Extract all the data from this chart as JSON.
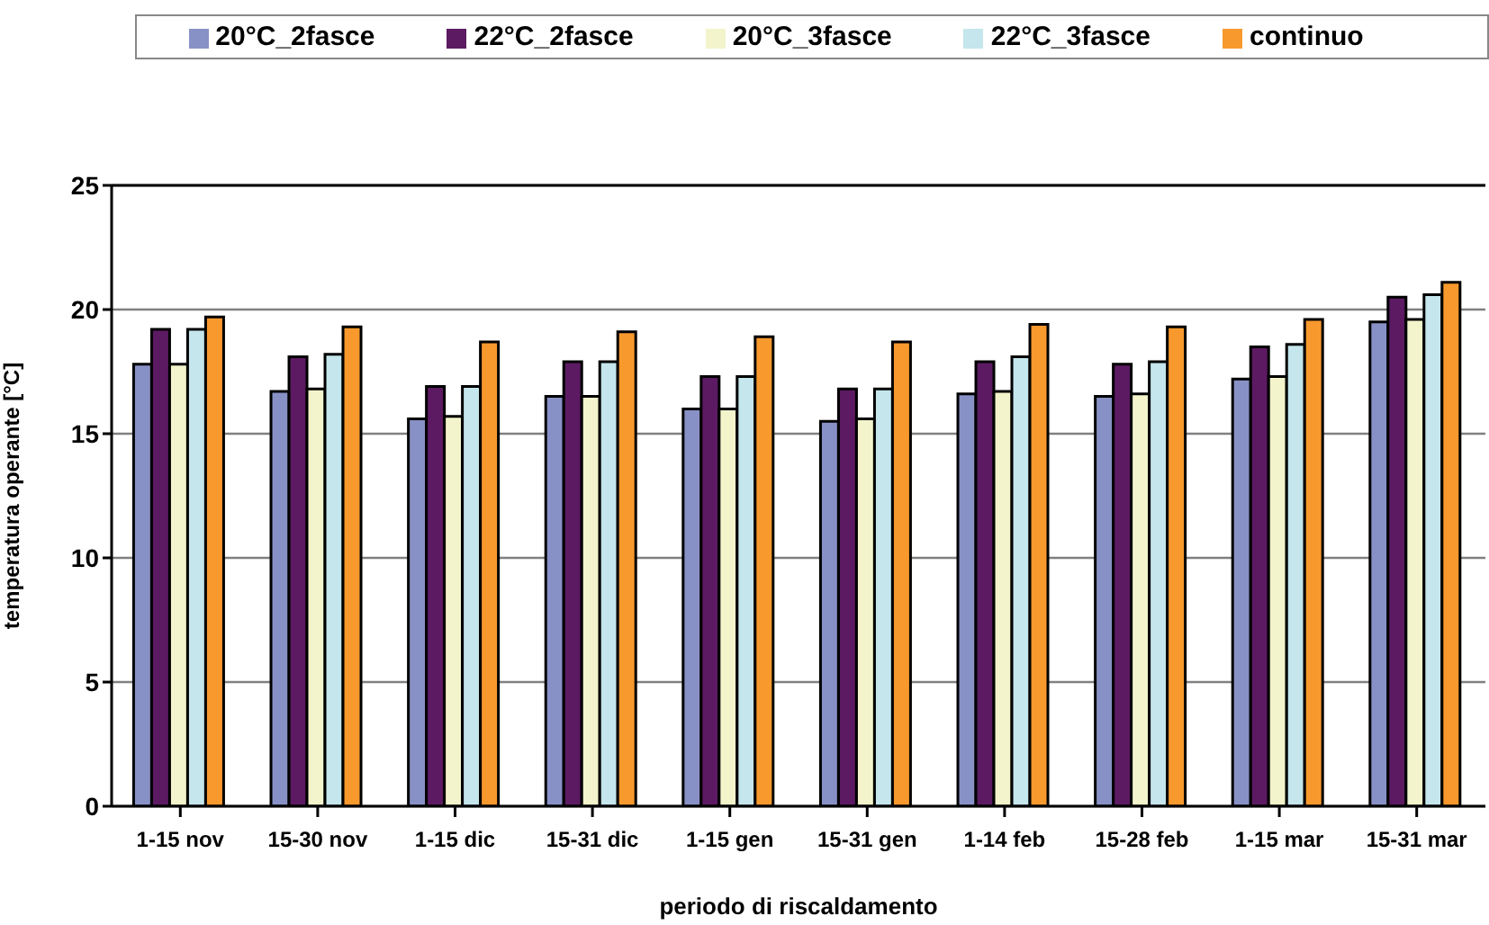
{
  "chart_data": {
    "type": "bar",
    "xlabel": "periodo di riscaldamento",
    "ylabel": "temperatura operante [°C]",
    "categories": [
      "1-15 nov",
      "15-30 nov",
      "1-15 dic",
      "15-31 dic",
      "1-15 gen",
      "15-31 gen",
      "1-14 feb",
      "15-28 feb",
      "1-15 mar",
      "15-31 mar"
    ],
    "series": [
      {
        "name": "20°C_2fasce",
        "color": "#8891c6",
        "values": [
          17.8,
          16.7,
          15.6,
          16.5,
          16.0,
          15.5,
          16.6,
          16.5,
          17.2,
          19.5
        ]
      },
      {
        "name": "22°C_2fasce",
        "color": "#5c1a62",
        "values": [
          19.2,
          18.1,
          16.9,
          17.9,
          17.3,
          16.8,
          17.9,
          17.8,
          18.5,
          20.5
        ]
      },
      {
        "name": "20°C_3fasce",
        "color": "#f4f4cc",
        "values": [
          17.8,
          16.8,
          15.7,
          16.5,
          16.0,
          15.6,
          16.7,
          16.6,
          17.3,
          19.6
        ]
      },
      {
        "name": "22°C_3fasce",
        "color": "#c4e6ec",
        "values": [
          19.2,
          18.2,
          16.9,
          17.9,
          17.3,
          16.8,
          18.1,
          17.9,
          18.6,
          20.6
        ]
      },
      {
        "name": "continuo",
        "color": "#f8992e",
        "values": [
          19.7,
          19.3,
          18.7,
          19.1,
          18.9,
          18.7,
          19.4,
          19.3,
          19.6,
          21.1
        ]
      }
    ],
    "ylim": [
      0,
      25
    ],
    "yticks": [
      0,
      5,
      10,
      15,
      20,
      25
    ],
    "grid": "y",
    "legend": "top"
  }
}
